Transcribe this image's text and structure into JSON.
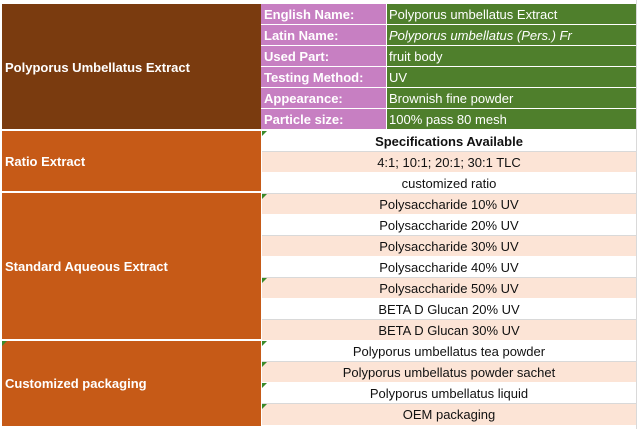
{
  "product": {
    "section_title": "Polyporus Umbellatus Extract",
    "fields": [
      {
        "label": "English Name:",
        "value": "Polyporus umbellatus Extract",
        "italic": false
      },
      {
        "label": "Latin Name:",
        "value": "Polyporus umbellatus (Pers.) Fr",
        "italic": true
      },
      {
        "label": "Used Part:",
        "value": "fruit body",
        "italic": false
      },
      {
        "label": "Testing Method:",
        "value": "UV",
        "italic": false
      },
      {
        "label": "Appearance:",
        "value": "Brownish fine powder",
        "italic": false
      },
      {
        "label": "Particle size:",
        "value": "100% pass 80 mesh",
        "italic": false
      }
    ]
  },
  "specs_header": "Specifications Available",
  "groups": [
    {
      "title": "Ratio Extract",
      "items": [
        "4:1; 10:1; 20:1; 30:1 TLC",
        "customized ratio"
      ]
    },
    {
      "title": "Standard Aqueous Extract",
      "items": [
        "Polysaccharide 10% UV",
        "Polysaccharide 20% UV",
        "Polysaccharide 30% UV",
        "Polysaccharide 40% UV",
        "Polysaccharide 50% UV",
        "BETA D Glucan 20% UV",
        "BETA D Glucan 30% UV"
      ]
    },
    {
      "title": "Customized packaging",
      "items": [
        "Polyporus umbellatus tea powder",
        "Polyporus umbellatus powder sachet",
        "Polyporus umbellatus liquid",
        "OEM packaging"
      ]
    }
  ],
  "colors": {
    "section_brown": "#7a3b0f",
    "section_orange": "#c65a17",
    "label_purple": "#c77fc2",
    "value_green": "#4f7f2c",
    "row_peach": "#fce4d6"
  }
}
